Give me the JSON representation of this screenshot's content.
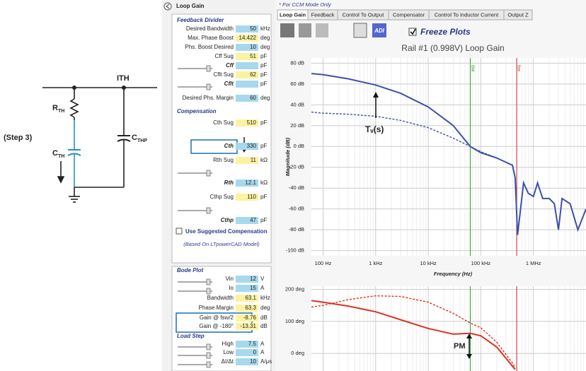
{
  "schematic": {
    "step": "(Step 3)",
    "node": "ITH",
    "rth": {
      "main": "R",
      "sub": "TH"
    },
    "cth": {
      "main": "C",
      "sub": "TH"
    },
    "cthp": {
      "main": "C",
      "sub": "THP"
    }
  },
  "panel": {
    "title": "Loop Gain",
    "sections": [
      {
        "title": "Feedback Divider",
        "fields": [
          {
            "label": "Desired Bandwidth",
            "value": 50,
            "unit": "kHz",
            "color": "#a8d8ee"
          },
          {
            "label": "Max. Phase Boost",
            "value": 14.422,
            "unit": "deg",
            "color": "#fbf3a0"
          },
          {
            "label": "Phs. Boost Desired",
            "value": 10,
            "unit": "deg",
            "color": "#a8d8ee"
          },
          {
            "label": "Cff Sug",
            "value": 51,
            "unit": "pF",
            "color": "#fbf3a0"
          },
          {
            "label": "Cff",
            "unit": "pF",
            "color": "#a8d8ee"
          },
          {
            "label": "Cflt Sug",
            "value": 62,
            "unit": "pF",
            "color": "#fbf3a0"
          },
          {
            "label": "Cflt",
            "unit": "pF",
            "color": "#a8d8ee"
          },
          {
            "label": "Desired Phs. Margin",
            "value": 60,
            "unit": "deg",
            "color": "#a8d8ee"
          }
        ]
      },
      {
        "title": "Compensation",
        "fields": [
          {
            "label": "Cth Sug",
            "value": 510,
            "unit": "pF",
            "color": "#fbf3a0"
          },
          {
            "label": "Cth",
            "value": 330,
            "unit": "pF",
            "color": "#a8d8ee"
          },
          {
            "label": "Rth Sug",
            "value": 11,
            "unit": "kΩ",
            "color": "#fbf3a0"
          },
          {
            "label": "Rth",
            "value": 12.1,
            "unit": "kΩ",
            "color": "#a8d8ee"
          },
          {
            "label": "Cthp Sug",
            "value": 110,
            "unit": "pF",
            "color": "#fbf3a0"
          },
          {
            "label": "Cthp",
            "value": 47,
            "unit": "pF",
            "color": "#a8d8ee"
          }
        ]
      },
      {
        "title": "Bode Plot",
        "fields": [
          {
            "label": "Vin",
            "value": 12,
            "unit": "V",
            "color": "#a8d8ee"
          },
          {
            "label": "Io",
            "value": 15,
            "unit": "A",
            "color": "#a8d8ee"
          },
          {
            "label": "Bandwidth",
            "value": 63.1,
            "unit": "kHz",
            "color": "#fbf3a0"
          },
          {
            "label": "Phase Margin",
            "value": 63.3,
            "unit": "deg",
            "color": "#fbf3a0"
          },
          {
            "label": "Gain @ fsw/2",
            "value": -8.76,
            "unit": "dB",
            "color": "#fbf3a0"
          },
          {
            "label": "Gain @ -180°",
            "value": -13.31,
            "unit": "dB",
            "color": "#fbf3a0"
          }
        ]
      },
      {
        "title": "Load Step",
        "fields": [
          {
            "label": "High",
            "value": 7.5,
            "unit": "A",
            "color": "#a8d8ee"
          },
          {
            "label": "Low",
            "value": 0,
            "unit": "A",
            "color": "#a8d8ee"
          },
          {
            "label": "ΔI/Δt",
            "value": 10,
            "unit": "A/μs",
            "color": "#a8d8ee"
          }
        ]
      }
    ],
    "checkbox": "Use Suggested Compensation",
    "note": "(Based On LTpowerCAD Model)"
  },
  "plots": {
    "mode_note": "* For CCM Mode Only",
    "tabs": [
      "Loop Gain",
      "Feedback",
      "Control To Output",
      "Compensator",
      "Control To Inductor Current",
      "Output Z"
    ],
    "toolbar_label": "ADI",
    "freeze": "Freeze Plots"
  },
  "chart_data": [
    {
      "type": "line",
      "title": "Rail #1 (0.998V) Loop Gain",
      "xlabel": "Frequency (Hz)",
      "ylabel": "Magnitude (dB)",
      "log_x": true,
      "grid": true,
      "x": [
        60,
        100,
        300,
        1000,
        3000,
        10000,
        30000,
        63100,
        100000,
        200000,
        400000,
        450000,
        500000,
        650000,
        800000,
        1000000,
        1200000,
        1500000,
        2000000,
        2500000,
        3000000,
        3500000,
        5000000,
        7000000,
        10000000
      ],
      "xlim": [
        60,
        10000000
      ],
      "xticks": [
        {
          "value": 100,
          "label": "100 Hz"
        },
        {
          "value": 1000,
          "label": "1 kHz"
        },
        {
          "value": 10000,
          "label": "10 kHz"
        },
        {
          "value": 100000,
          "label": "100 kHz"
        },
        {
          "value": 1000000,
          "label": "1 MHz"
        }
      ],
      "ylim": [
        -105,
        85
      ],
      "yticks": [
        {
          "value": 80,
          "label": "80 dB"
        },
        {
          "value": 60,
          "label": "60 dB"
        },
        {
          "value": 40,
          "label": "40 dB"
        },
        {
          "value": 20,
          "label": "20 dB"
        },
        {
          "value": 0,
          "label": "0 dB"
        },
        {
          "value": -20,
          "label": "-20 dB"
        },
        {
          "value": -40,
          "label": "-40 dB"
        },
        {
          "value": -60,
          "label": "-60 dB"
        },
        {
          "value": -80,
          "label": "-80 dB"
        },
        {
          "value": -100,
          "label": "-100 dB"
        }
      ],
      "series": [
        {
          "color": "#3f4fa8",
          "dash": false,
          "values": [
            70,
            69,
            65,
            59,
            51,
            38,
            20,
            0,
            -6,
            -11,
            -18,
            -30,
            -85,
            -35,
            -45,
            -48,
            -35,
            -50,
            -50,
            -55,
            -80,
            -50,
            -55,
            -80,
            -60
          ]
        },
        {
          "color": "#3f4fa8",
          "dash": true,
          "values": [
            33,
            32,
            31,
            29,
            25,
            18,
            8,
            0,
            -5,
            -11,
            null,
            null,
            null,
            null,
            null,
            null,
            null,
            null,
            null,
            null,
            null,
            null,
            null,
            null,
            null
          ]
        }
      ],
      "vlines": [
        {
          "value": 63100,
          "label": "BW",
          "color": "#3a9a3a"
        },
        {
          "value": 480000,
          "label": "fsw",
          "color": "#c03030"
        }
      ],
      "annotation": "Tᵥ(s)"
    },
    {
      "type": "line",
      "log_x": true,
      "grid": true,
      "x": [
        60,
        100,
        300,
        1000,
        3000,
        10000,
        30000,
        63100,
        100000,
        200000,
        400000,
        450000
      ],
      "xlim": [
        60,
        10000000
      ],
      "ylim": [
        -55,
        210
      ],
      "yticks": [
        {
          "value": 200,
          "label": "200 deg"
        },
        {
          "value": 100,
          "label": "100 deg"
        },
        {
          "value": 0,
          "label": "0 deg"
        }
      ],
      "series": [
        {
          "color": "#e03020",
          "dash": false,
          "values": [
            165,
            160,
            148,
            130,
            105,
            78,
            60,
            63,
            55,
            20,
            -40,
            -50
          ]
        },
        {
          "color": "#e03020",
          "dash": true,
          "values": [
            145,
            150,
            168,
            180,
            178,
            160,
            125,
            95,
            80,
            35,
            -30,
            -45
          ]
        }
      ],
      "vlines": [
        {
          "value": 63100,
          "color": "#3a9a3a"
        },
        {
          "value": 480000,
          "color": "#c03030"
        }
      ],
      "annotation": "PM"
    }
  ]
}
